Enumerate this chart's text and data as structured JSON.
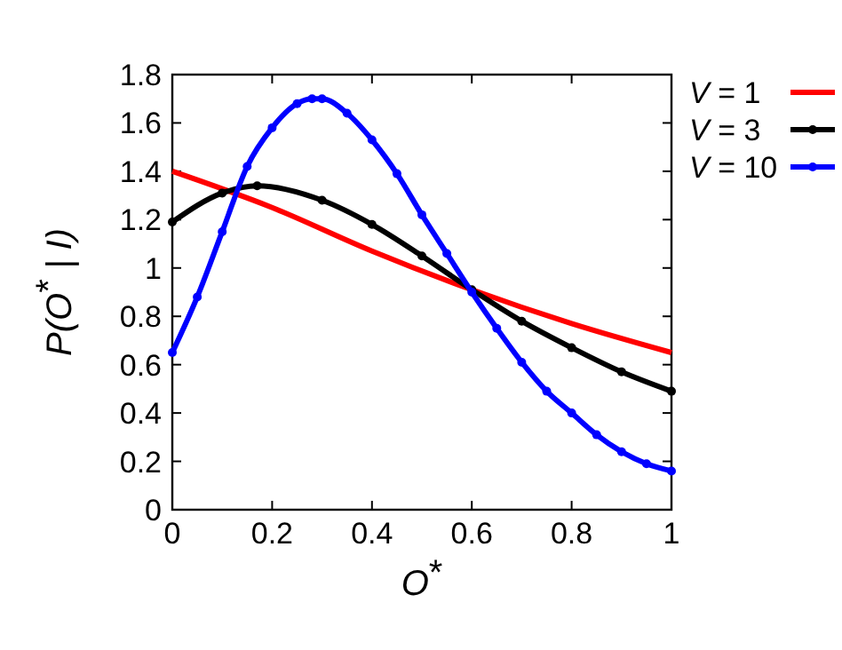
{
  "chart_data": {
    "type": "line",
    "xlabel": "O$^{*}$",
    "ylabel": "P(O$^{*}$ | I)",
    "xlim": [
      0,
      1
    ],
    "ylim": [
      0,
      1.8
    ],
    "xticks": [
      0,
      0.2,
      0.4,
      0.6,
      0.8,
      1
    ],
    "yticks": [
      0,
      0.2,
      0.4,
      0.6,
      0.8,
      1,
      1.2,
      1.4,
      1.6,
      1.8
    ],
    "legend": "top right",
    "grid": false,
    "series": [
      {
        "name": "V = 1",
        "color": "#ff0000",
        "marker": "none",
        "x": [
          0,
          0.2,
          0.4,
          0.6,
          0.8,
          1
        ],
        "values": [
          1.4,
          1.25,
          1.07,
          0.91,
          0.77,
          0.65
        ]
      },
      {
        "name": "V = 3",
        "color": "#000000",
        "marker": "circle",
        "x": [
          0,
          0.1,
          0.17,
          0.3,
          0.4,
          0.5,
          0.6,
          0.7,
          0.8,
          0.9,
          1
        ],
        "values": [
          1.19,
          1.31,
          1.34,
          1.28,
          1.18,
          1.05,
          0.91,
          0.78,
          0.67,
          0.57,
          0.49
        ]
      },
      {
        "name": "V = 10",
        "color": "#0000ff",
        "marker": "circle",
        "x": [
          0,
          0.05,
          0.1,
          0.15,
          0.2,
          0.25,
          0.28,
          0.3,
          0.35,
          0.4,
          0.45,
          0.5,
          0.55,
          0.6,
          0.65,
          0.7,
          0.75,
          0.8,
          0.85,
          0.9,
          0.95,
          1
        ],
        "values": [
          0.65,
          0.88,
          1.15,
          1.42,
          1.58,
          1.68,
          1.7,
          1.7,
          1.64,
          1.53,
          1.39,
          1.22,
          1.06,
          0.9,
          0.75,
          0.61,
          0.49,
          0.4,
          0.31,
          0.24,
          0.19,
          0.16
        ]
      }
    ]
  }
}
